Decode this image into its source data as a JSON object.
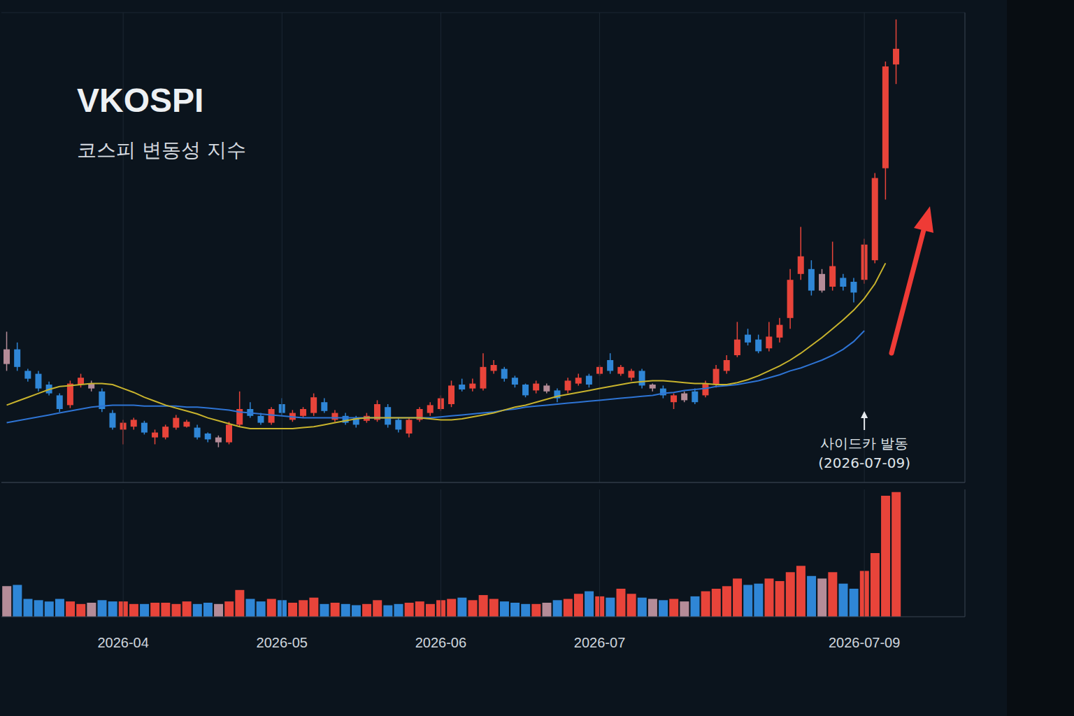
{
  "chart_data": {
    "type": "candlestick",
    "title": "VKOSPI",
    "subtitle": "코스피 변동성 지수",
    "categories": [
      null,
      null,
      null,
      null,
      null,
      null,
      null,
      null,
      null,
      null,
      null,
      "2026-04",
      null,
      null,
      null,
      null,
      null,
      null,
      null,
      null,
      null,
      null,
      null,
      null,
      null,
      null,
      "2026-05",
      null,
      null,
      null,
      null,
      null,
      null,
      null,
      null,
      null,
      null,
      null,
      null,
      null,
      null,
      "2026-06",
      null,
      null,
      null,
      null,
      null,
      null,
      null,
      null,
      null,
      null,
      null,
      null,
      null,
      null,
      "2026-07",
      null,
      null,
      null,
      null,
      null,
      null,
      null,
      null,
      null,
      null,
      null,
      null,
      null,
      null,
      null,
      null,
      null,
      null,
      null,
      null,
      null,
      null,
      null,
      null,
      "2026-07-09",
      null,
      null,
      null,
      null,
      null,
      null,
      null,
      null,
      null
    ],
    "candles": {
      "open": [
        24.1,
        25.6,
        23.4,
        23.1,
        22.0,
        20.9,
        19.9,
        22.0,
        22.1,
        21.3,
        19.1,
        17.4,
        17.7,
        18.1,
        16.6,
        16.6,
        17.6,
        17.7,
        17.6,
        17.0,
        16.6,
        16.1,
        17.9,
        19.5,
        18.8,
        18.1,
        20.0,
        18.4,
        18.8,
        19.1,
        20.2,
        18.4,
        18.8,
        18.6,
        18.3,
        18.4,
        19.7,
        18.4,
        17.0,
        18.4,
        19.1,
        19.5,
        20.0,
        22.0,
        21.6,
        21.6,
        23.4,
        23.6,
        22.7,
        22.0,
        21.4,
        21.9,
        21.4,
        21.4,
        22.1,
        22.9,
        23.1,
        24.5,
        23.1,
        22.7,
        23.4,
        22.0,
        21.6,
        20.2,
        21.1,
        21.3,
        20.9,
        22.0,
        23.4,
        25.0,
        27.1,
        26.6,
        25.7,
        26.8,
        28.8,
        33.3,
        33.8,
        33.3,
        32.0,
        32.9,
        32.5,
        32.7,
        34.7,
        44.1,
        54.7,
        null,
        null,
        null,
        null,
        null,
        null
      ],
      "close": [
        25.6,
        23.8,
        22.6,
        21.6,
        21.1,
        19.5,
        22.1,
        22.7,
        21.6,
        19.5,
        17.6,
        18.1,
        18.4,
        17.1,
        17.1,
        17.7,
        18.6,
        18.2,
        16.6,
        16.4,
        16.1,
        17.9,
        19.5,
        18.8,
        18.1,
        19.5,
        19.1,
        19.1,
        19.5,
        20.7,
        19.3,
        19.1,
        18.1,
        17.9,
        18.8,
        20.0,
        17.9,
        17.4,
        18.4,
        19.5,
        19.9,
        20.6,
        21.9,
        21.5,
        22.1,
        23.8,
        24.0,
        22.6,
        22.0,
        20.9,
        22.1,
        21.3,
        20.6,
        22.4,
        22.7,
        22.0,
        23.8,
        23.4,
        23.8,
        23.4,
        21.9,
        21.6,
        20.9,
        20.9,
        20.4,
        20.2,
        22.1,
        23.6,
        24.5,
        26.6,
        26.3,
        25.4,
        26.9,
        28.1,
        32.7,
        35.1,
        31.6,
        31.6,
        34.1,
        32.0,
        31.4,
        36.3,
        43.1,
        54.5,
        56.3,
        null,
        null,
        null,
        null,
        null,
        null
      ],
      "high": [
        27.4,
        26.3,
        23.6,
        23.4,
        22.3,
        21.1,
        22.4,
        23.1,
        22.4,
        21.6,
        19.4,
        18.4,
        18.6,
        18.3,
        17.4,
        17.9,
        18.9,
        18.4,
        17.9,
        17.1,
        16.8,
        18.2,
        21.3,
        20.2,
        19.1,
        19.7,
        20.6,
        19.4,
        19.7,
        21.1,
        20.6,
        19.4,
        19.1,
        18.8,
        19.1,
        20.4,
        20.0,
        18.6,
        18.6,
        19.7,
        20.2,
        20.9,
        22.4,
        22.6,
        22.6,
        25.2,
        24.5,
        23.8,
        22.9,
        22.1,
        22.4,
        22.1,
        21.6,
        22.7,
        23.1,
        23.1,
        24.0,
        25.2,
        24.0,
        23.6,
        23.6,
        22.1,
        21.9,
        21.1,
        21.3,
        21.6,
        22.4,
        24.0,
        25.0,
        28.4,
        27.7,
        27.1,
        28.4,
        28.8,
        33.8,
        38.1,
        34.7,
        33.8,
        36.6,
        33.3,
        32.9,
        36.9,
        43.6,
        55.0,
        59.3,
        null,
        null,
        null,
        null,
        null,
        null
      ],
      "low": [
        23.4,
        23.4,
        22.3,
        21.3,
        20.9,
        19.2,
        19.6,
        21.7,
        21.3,
        19.2,
        17.4,
        15.9,
        17.4,
        16.9,
        15.9,
        16.4,
        17.4,
        17.6,
        16.4,
        16.1,
        15.6,
        15.9,
        17.7,
        18.6,
        17.9,
        17.9,
        18.8,
        18.2,
        18.6,
        18.8,
        19.1,
        18.2,
        17.9,
        17.6,
        18.1,
        18.2,
        17.6,
        17.1,
        16.6,
        18.2,
        18.8,
        19.3,
        19.7,
        21.3,
        21.3,
        21.4,
        23.1,
        22.3,
        21.7,
        20.7,
        21.1,
        21.1,
        20.2,
        21.1,
        21.9,
        21.7,
        22.9,
        23.1,
        22.9,
        22.4,
        21.6,
        21.3,
        20.6,
        19.5,
        20.2,
        20.0,
        20.7,
        21.7,
        23.1,
        24.8,
        26.0,
        25.2,
        25.4,
        26.3,
        27.7,
        32.7,
        31.1,
        31.4,
        31.6,
        31.6,
        30.4,
        32.3,
        34.4,
        40.9,
        52.7,
        null,
        null,
        null,
        null,
        null,
        null
      ],
      "colors": [
        "#b58c98",
        "#2f86d6",
        "#2f86d6",
        "#2f86d6",
        "#2f86d6",
        "#2f86d6",
        "#e8443a",
        "#e8443a",
        "#b58c98",
        "#2f86d6",
        "#2f86d6",
        "#e8443a",
        "#e8443a",
        "#2f86d6",
        "#e8443a",
        "#e8443a",
        "#e8443a",
        "#e8443a",
        "#2f86d6",
        "#2f86d6",
        "#b58c98",
        "#e8443a",
        "#e8443a",
        "#2f86d6",
        "#2f86d6",
        "#e8443a",
        "#2f86d6",
        "#e8443a",
        "#e8443a",
        "#e8443a",
        "#2f86d6",
        "#e8443a",
        "#2f86d6",
        "#2f86d6",
        "#e8443a",
        "#e8443a",
        "#2f86d6",
        "#2f86d6",
        "#e8443a",
        "#e8443a",
        "#e8443a",
        "#e8443a",
        "#e8443a",
        "#2f86d6",
        "#e8443a",
        "#e8443a",
        "#e8443a",
        "#2f86d6",
        "#2f86d6",
        "#2f86d6",
        "#e8443a",
        "#b58c98",
        "#2f86d6",
        "#e8443a",
        "#e8443a",
        "#2f86d6",
        "#e8443a",
        "#2f86d6",
        "#e8443a",
        "#e8443a",
        "#2f86d6",
        "#b58c98",
        "#2f86d6",
        "#e8443a",
        "#b58c98",
        "#2f86d6",
        "#e8443a",
        "#e8443a",
        "#e8443a",
        "#e8443a",
        "#2f86d6",
        "#2f86d6",
        "#e8443a",
        "#e8443a",
        "#e8443a",
        "#e8443a",
        "#2f86d6",
        "#b58c98",
        "#e8443a",
        "#2f86d6",
        "#2f86d6",
        "#e8443a",
        "#e8443a",
        "#e8443a",
        "#e8443a",
        null,
        null,
        null,
        null,
        null,
        null
      ]
    },
    "series": [
      {
        "color": "#c8b32d",
        "values": [
          19.9,
          20.3,
          20.7,
          21.1,
          21.5,
          21.8,
          21.9,
          22.0,
          22.1,
          22.1,
          22.0,
          21.6,
          21.2,
          20.7,
          20.3,
          19.9,
          19.6,
          19.3,
          19.0,
          18.6,
          18.3,
          18.0,
          17.7,
          17.5,
          17.5,
          17.5,
          17.5,
          17.5,
          17.6,
          17.7,
          17.9,
          18.1,
          18.3,
          18.5,
          18.6,
          18.6,
          18.6,
          18.6,
          18.6,
          18.6,
          18.5,
          18.4,
          18.4,
          18.5,
          18.7,
          18.9,
          19.1,
          19.4,
          19.7,
          19.9,
          20.2,
          20.5,
          20.8,
          21.0,
          21.2,
          21.4,
          21.6,
          21.8,
          22.0,
          22.2,
          22.3,
          22.4,
          22.4,
          22.3,
          22.2,
          22.1,
          22.1,
          22.0,
          22.0,
          22.2,
          22.5,
          22.9,
          23.4,
          23.9,
          24.5,
          25.2,
          26.0,
          26.8,
          27.7,
          28.6,
          29.6,
          30.8,
          32.3,
          34.4,
          null,
          null,
          null,
          null,
          null,
          null,
          null
        ]
      },
      {
        "color": "#2e74d4",
        "values": [
          18.1,
          18.3,
          18.5,
          18.7,
          18.9,
          19.1,
          19.3,
          19.5,
          19.7,
          19.8,
          19.9,
          19.9,
          19.9,
          19.8,
          19.8,
          19.8,
          19.8,
          19.7,
          19.7,
          19.6,
          19.5,
          19.4,
          19.2,
          19.1,
          19.0,
          18.9,
          18.8,
          18.7,
          18.6,
          18.6,
          18.6,
          18.6,
          18.6,
          18.6,
          18.6,
          18.6,
          18.6,
          18.6,
          18.6,
          18.6,
          18.6,
          18.7,
          18.8,
          18.9,
          19.0,
          19.1,
          19.2,
          19.4,
          19.5,
          19.7,
          19.8,
          19.9,
          20.0,
          20.1,
          20.2,
          20.3,
          20.4,
          20.5,
          20.6,
          20.7,
          20.8,
          20.9,
          21.1,
          21.2,
          21.4,
          21.5,
          21.6,
          21.8,
          21.9,
          22.0,
          22.2,
          22.4,
          22.7,
          23.0,
          23.4,
          23.7,
          24.1,
          24.5,
          25.0,
          25.6,
          26.4,
          27.5,
          null,
          null,
          null,
          null,
          null,
          null,
          null,
          null,
          null
        ]
      }
    ],
    "volume": {
      "values": [
        24,
        25,
        14,
        13,
        12,
        14,
        12,
        10,
        11,
        13,
        12,
        12,
        10,
        10,
        11,
        11,
        10,
        12,
        10,
        11,
        10,
        12,
        21,
        14,
        12,
        14,
        13,
        11,
        13,
        15,
        10,
        11,
        10,
        9,
        10,
        13,
        9,
        10,
        11,
        12,
        10,
        13,
        14,
        15,
        13,
        17,
        14,
        12,
        11,
        10,
        10,
        11,
        13,
        14,
        18,
        20,
        16,
        15,
        22,
        18,
        15,
        14,
        13,
        14,
        12,
        16,
        20,
        22,
        24,
        30,
        25,
        26,
        30,
        28,
        35,
        40,
        32,
        30,
        35,
        26,
        22,
        36,
        50,
        95,
        98,
        null,
        null,
        null,
        null,
        null,
        null
      ],
      "ylim": [
        0,
        100
      ],
      "yticks": [
        0,
        100
      ]
    },
    "ylim": [
      12,
      60
    ],
    "yticks": [
      15,
      20,
      25,
      30,
      35,
      40,
      45,
      50,
      55,
      60
    ],
    "grid": true,
    "tick_labels": "x",
    "annotation": {
      "lines": [
        "사이드카 발동",
        "(2026-07-09)"
      ],
      "category": "2026-07-09"
    }
  }
}
